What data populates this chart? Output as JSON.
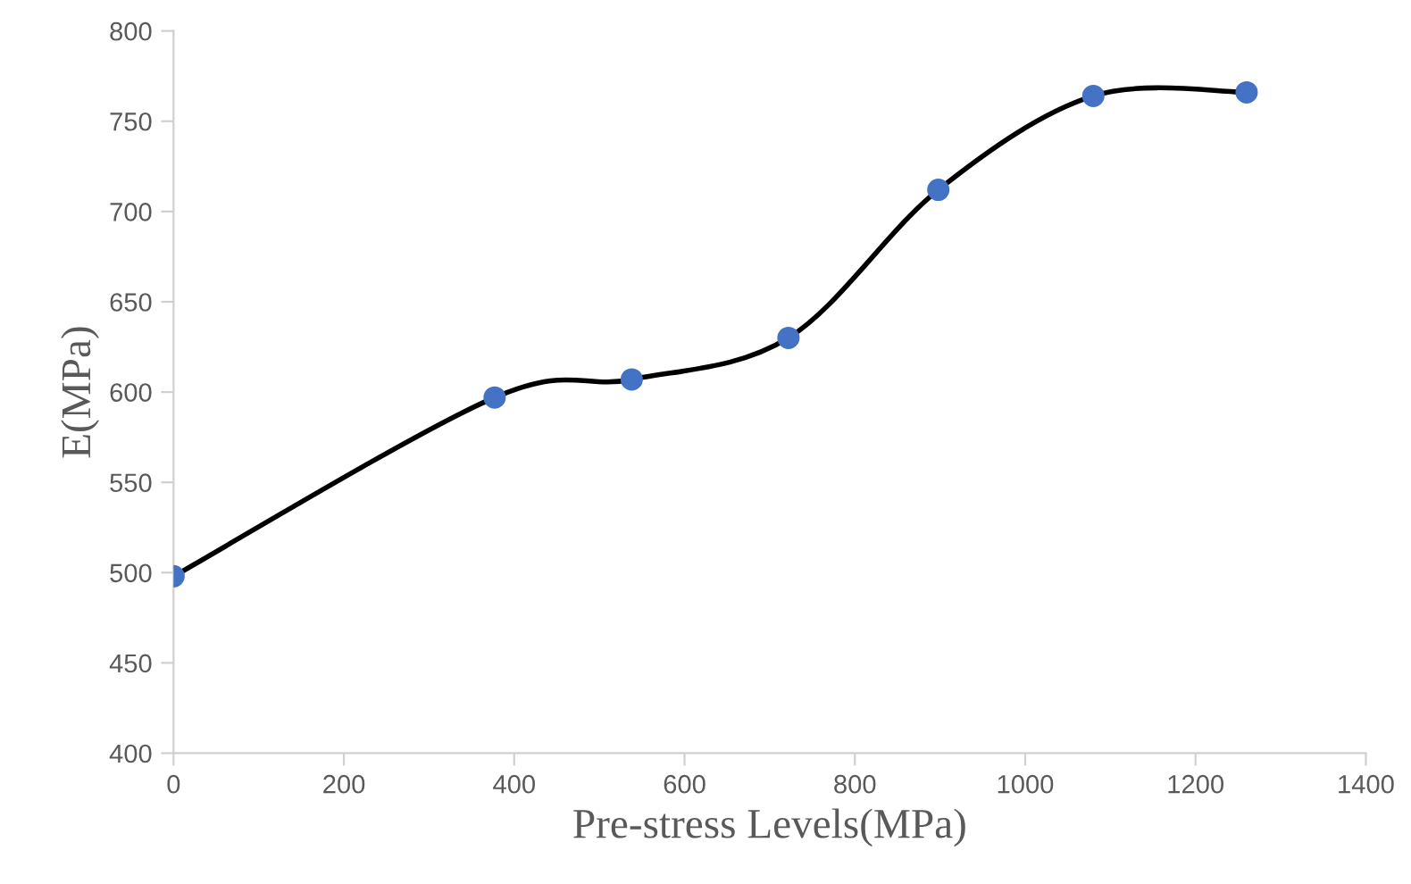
{
  "chart_data": {
    "type": "line",
    "xlabel": "Pre-stress Levels(MPa)",
    "ylabel": "E(MPa)",
    "x": [
      0,
      377,
      538,
      722,
      898,
      1080,
      1260
    ],
    "series": [
      {
        "color": "#4472c4",
        "values": [
          498,
          597,
          607,
          630,
          712,
          764,
          766
        ]
      }
    ],
    "xlim": [
      0,
      1400
    ],
    "xticks": [
      0,
      200,
      400,
      600,
      800,
      1000,
      1200,
      1400
    ],
    "ylim": [
      400,
      800
    ],
    "yticks": [
      400,
      450,
      500,
      550,
      600,
      650,
      700,
      750,
      800
    ],
    "grid": false,
    "marker": "circle",
    "line_style": "solid"
  }
}
